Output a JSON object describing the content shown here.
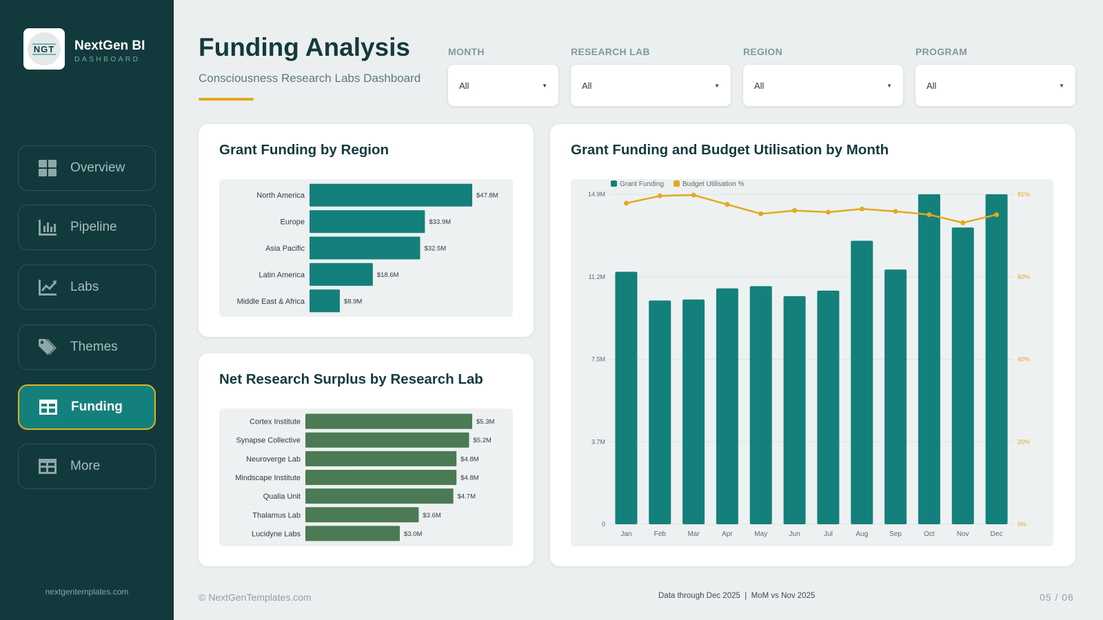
{
  "brand": {
    "logo_text": "NGT",
    "name": "NextGen BI",
    "sub": "DASHBOARD",
    "site": "nextgentemplates.com"
  },
  "nav": [
    {
      "label": "Overview",
      "icon": "grid-icon"
    },
    {
      "label": "Pipeline",
      "icon": "bar-chart-icon"
    },
    {
      "label": "Labs",
      "icon": "line-chart-icon"
    },
    {
      "label": "Themes",
      "icon": "tag-icon"
    },
    {
      "label": "Funding",
      "icon": "table-icon",
      "active": true
    },
    {
      "label": "More",
      "icon": "table-icon"
    }
  ],
  "header": {
    "title": "Funding Analysis",
    "subtitle": "Consciousness Research Labs Dashboard"
  },
  "filters": [
    {
      "label": "MONTH",
      "value": "All"
    },
    {
      "label": "RESEARCH LAB",
      "value": "All"
    },
    {
      "label": "REGION",
      "value": "All"
    },
    {
      "label": "PROGRAM",
      "value": "All"
    }
  ],
  "colors": {
    "teal": "#14807c",
    "green": "#4c7a55",
    "amber": "#e3a91d",
    "sidebar": "#123a3c",
    "active_border": "#e0b21f"
  },
  "chart_data": [
    {
      "type": "bar",
      "orientation": "horizontal",
      "title": "Grant Funding by Region",
      "categories": [
        "North America",
        "Europe",
        "Asia Pacific",
        "Latin America",
        "Middle East & Africa"
      ],
      "values": [
        47.8,
        33.9,
        32.5,
        18.6,
        8.9
      ],
      "labels": [
        "$47.8M",
        "$33.9M",
        "$32.5M",
        "$18.6M",
        "$8.9M"
      ],
      "color": "#14807c"
    },
    {
      "type": "bar",
      "orientation": "horizontal",
      "title": "Net Research Surplus by Research Lab",
      "categories": [
        "Cortex Institute",
        "Synapse Collective",
        "Neuroverge Lab",
        "Mindscape Institute",
        "Qualia Unit",
        "Thalamus Lab",
        "Lucidyne Labs"
      ],
      "values": [
        5.3,
        5.2,
        4.8,
        4.8,
        4.7,
        3.6,
        3.0
      ],
      "labels": [
        "$5.3M",
        "$5.2M",
        "$4.8M",
        "$4.8M",
        "$4.7M",
        "$3.6M",
        "$3.0M"
      ],
      "color": "#4c7a55"
    },
    {
      "type": "bar",
      "title": "Grant Funding and Budget Utilisation by Month",
      "categories": [
        "Jan",
        "Feb",
        "Mar",
        "Apr",
        "May",
        "Jun",
        "Jul",
        "Aug",
        "Sep",
        "Oct",
        "Nov",
        "Dec"
      ],
      "series": [
        {
          "name": "Grant Funding",
          "type": "bar",
          "axis": "left",
          "color": "#14807c",
          "values": [
            11.4,
            10.1,
            10.15,
            10.65,
            10.75,
            10.3,
            10.55,
            12.8,
            11.5,
            14.9,
            13.4,
            14.9
          ]
        },
        {
          "name": "Budget Utilisation %",
          "type": "line",
          "axis": "right",
          "color": "#e3a91d",
          "values": [
            78.8,
            80.6,
            80.8,
            78.5,
            76.2,
            77.0,
            76.6,
            77.4,
            76.8,
            76.0,
            74.0,
            76.0
          ]
        }
      ],
      "left_axis": {
        "ticks": [
          "0",
          "3.7M",
          "7.5M",
          "11.2M",
          "14.9M"
        ],
        "ylim": [
          0,
          14.9
        ]
      },
      "right_axis": {
        "ticks": [
          "0%",
          "20%",
          "40%",
          "60%",
          "81%"
        ],
        "ylim": [
          0,
          81
        ]
      },
      "legend": "top-left",
      "grid": true
    }
  ],
  "footer": {
    "copyright": "© NextGenTemplates.com",
    "note": "Data through Dec 2025  |  MoM vs Nov 2025",
    "page": "05 / 06"
  }
}
